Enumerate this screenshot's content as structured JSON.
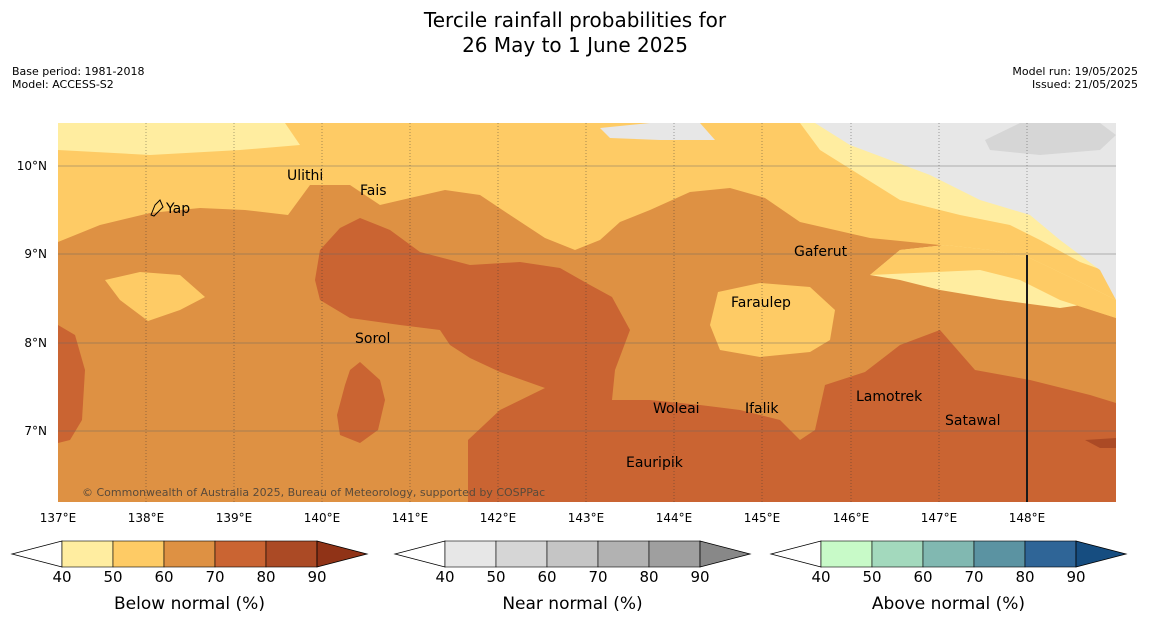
{
  "title": {
    "line1": "Tercile rainfall probabilities for",
    "line2": "26 May to 1 June 2025"
  },
  "meta_left": {
    "base_period": "Base period: 1981-2018",
    "model": "Model: ACCESS-S2"
  },
  "meta_right": {
    "model_run": "Model run: 19/05/2025",
    "issued": "Issued: 21/05/2025"
  },
  "map": {
    "lon_range": [
      137,
      149
    ],
    "lat_range": [
      6.2,
      10.5
    ],
    "lon_ticks": [
      "137°E",
      "138°E",
      "139°E",
      "140°E",
      "141°E",
      "142°E",
      "143°E",
      "144°E",
      "145°E",
      "146°E",
      "147°E",
      "148°E"
    ],
    "lat_ticks": [
      "10°N",
      "9°N",
      "8°N",
      "7°N"
    ],
    "places": [
      "Yap",
      "Ulithi",
      "Fais",
      "Gaferut",
      "Faraulep",
      "Sorol",
      "Lamotrek",
      "Woleai",
      "Ifalik",
      "Satawal",
      "Eauripik"
    ],
    "copyright": "© Commonwealth of Australia 2025, Bureau of Meteorology, supported by COSPPac"
  },
  "colorbars": [
    {
      "label": "Below normal (%)",
      "ticks": [
        "40",
        "50",
        "60",
        "70",
        "80",
        "90"
      ],
      "colors": [
        "#ffeda0",
        "#fecb65",
        "#de9143",
        "#ca6432",
        "#ab4a25",
        "#903317"
      ]
    },
    {
      "label": "Near normal (%)",
      "ticks": [
        "40",
        "50",
        "60",
        "70",
        "80",
        "90"
      ],
      "colors": [
        "#e7e7e7",
        "#d6d6d6",
        "#c5c5c5",
        "#b2b2b2",
        "#9f9f9f",
        "#888888"
      ]
    },
    {
      "label": "Above normal (%)",
      "ticks": [
        "40",
        "50",
        "60",
        "70",
        "80",
        "90"
      ],
      "colors": [
        "#c8fac8",
        "#a3d9bd",
        "#81b8b1",
        "#5b93a2",
        "#2f6597",
        "#164d80"
      ]
    }
  ]
}
